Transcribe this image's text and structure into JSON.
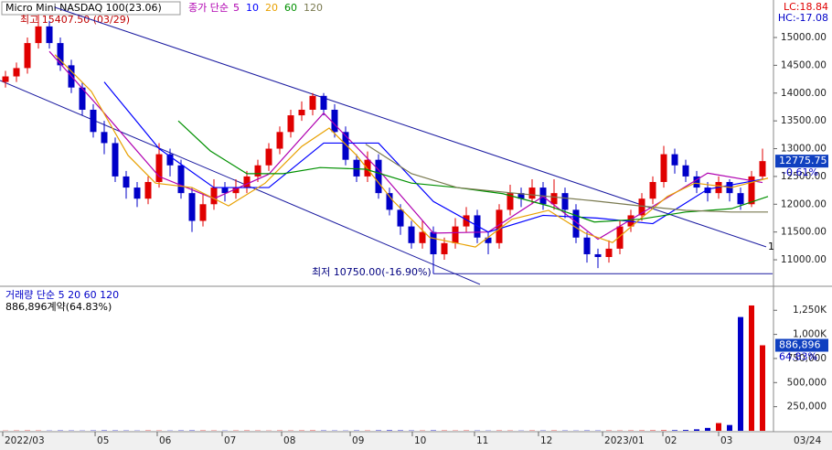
{
  "chart_data": {
    "type": "candlestick",
    "title": "Micro Mini NASDAQ 100(23.06)",
    "legend_prefix": "종가 단순",
    "high_label": "최고 15407.50 (03/29)",
    "low_label": "최저 10750.00(-16.90%)",
    "lc_label": "LC:18.84",
    "hc_label": "HC:-17.08",
    "last_price_label": "12775.75",
    "change_label": "-0.61%",
    "line_label": "1",
    "last_date": "03/24",
    "up_color": "#e00000",
    "down_color": "#0000c8",
    "ylim": [
      10540,
      15675
    ],
    "yticks": [
      {
        "value": 11000,
        "label": "11000.00"
      },
      {
        "value": 11500,
        "label": "11500.00"
      },
      {
        "value": 12000,
        "label": "12000.00"
      },
      {
        "value": 12500,
        "label": "12500.00"
      },
      {
        "value": 13000,
        "label": "13000.00"
      },
      {
        "value": 13500,
        "label": "13500.00"
      },
      {
        "value": 14000,
        "label": "14000.00"
      },
      {
        "value": 14500,
        "label": "14500.00"
      },
      {
        "value": 15000,
        "label": "15000.00"
      }
    ],
    "xticks": [
      {
        "value": -0.25,
        "label": "2022/03"
      },
      {
        "value": 8.17,
        "label": "05"
      },
      {
        "value": 13.83,
        "label": "06"
      },
      {
        "value": 19.75,
        "label": "07"
      },
      {
        "value": 25.17,
        "label": "08"
      },
      {
        "value": 31.42,
        "label": "09"
      },
      {
        "value": 37.08,
        "label": "10"
      },
      {
        "value": 42.75,
        "label": "11"
      },
      {
        "value": 48.58,
        "label": "12"
      },
      {
        "value": 54.42,
        "label": "2023/01"
      },
      {
        "value": 59.92,
        "label": "02"
      },
      {
        "value": 65,
        "label": "03"
      }
    ],
    "candles": {
      "open": [
        14200,
        14300,
        14450,
        14900,
        15200,
        14900,
        14500,
        14100,
        13700,
        13300,
        13100,
        12500,
        12300,
        12100,
        12400,
        12900,
        12700,
        12200,
        11700,
        12000,
        12300,
        12200,
        12300,
        12500,
        12700,
        13000,
        13300,
        13600,
        13700,
        13950,
        13700,
        13300,
        12800,
        12500,
        12800,
        12200,
        11900,
        11600,
        11300,
        11500,
        11100,
        11300,
        11600,
        11800,
        11400,
        11300,
        11900,
        12200,
        12100,
        12300,
        12000,
        12200,
        11900,
        11400,
        11100,
        11050,
        11200,
        11600,
        11800,
        12100,
        12400,
        12900,
        12700,
        12500,
        12300,
        12200,
        12400,
        12200,
        12000,
        12500
      ],
      "high": [
        14400,
        14550,
        15000,
        15407.5,
        15300,
        15000,
        14600,
        14200,
        13800,
        13500,
        13200,
        12600,
        12400,
        12500,
        13100,
        13000,
        12800,
        12300,
        12200,
        12450,
        12400,
        12450,
        12600,
        12800,
        13100,
        13400,
        13700,
        13850,
        14000,
        14000,
        13800,
        13400,
        12900,
        12950,
        12900,
        12300,
        12000,
        11700,
        11700,
        11600,
        11400,
        11750,
        11950,
        11900,
        11500,
        12000,
        12350,
        12300,
        12450,
        12400,
        12450,
        12300,
        12000,
        11500,
        11200,
        11350,
        11700,
        11900,
        12200,
        12500,
        13050,
        13000,
        12800,
        12600,
        12400,
        12500,
        12450,
        12300,
        12600,
        13000
      ],
      "low": [
        14100,
        14200,
        14350,
        14800,
        14800,
        14400,
        14000,
        13600,
        13200,
        12900,
        12400,
        12100,
        11950,
        12000,
        12300,
        12500,
        12100,
        11500,
        11600,
        11900,
        12050,
        12100,
        12200,
        12400,
        12600,
        12900,
        13200,
        13500,
        13600,
        13600,
        13200,
        12700,
        12400,
        12400,
        12100,
        11800,
        11450,
        11200,
        11200,
        10750,
        11000,
        11200,
        11500,
        11300,
        11100,
        11200,
        11800,
        11950,
        12000,
        11900,
        11900,
        11750,
        11300,
        10950,
        10850,
        10950,
        11100,
        11500,
        11700,
        12000,
        12300,
        12550,
        12400,
        12200,
        12050,
        12100,
        12050,
        11900,
        11950,
        12450
      ],
      "close": [
        14300,
        14450,
        14900,
        15200,
        14900,
        14500,
        14100,
        13700,
        13300,
        13100,
        12500,
        12300,
        12100,
        12400,
        12900,
        12700,
        12200,
        11700,
        12000,
        12300,
        12200,
        12300,
        12500,
        12700,
        13000,
        13300,
        13600,
        13700,
        13950,
        13700,
        13300,
        12800,
        12500,
        12800,
        12200,
        11900,
        11600,
        11300,
        11500,
        11100,
        11300,
        11600,
        11800,
        11400,
        11300,
        11900,
        12200,
        12100,
        12300,
        12000,
        12200,
        11900,
        11400,
        11100,
        11050,
        11200,
        11600,
        11800,
        12100,
        12400,
        12900,
        12700,
        12500,
        12300,
        12200,
        12400,
        12200,
        12000,
        12500,
        12775.75
      ]
    },
    "series": [
      {
        "name": "5",
        "color": "#b000b0",
        "x": [
          4,
          9,
          14,
          19,
          24,
          29,
          34,
          39,
          44,
          49,
          54,
          59,
          64,
          69
        ],
        "values": [
          14750,
          13640,
          12500,
          12100,
          12540,
          13640,
          12620,
          11480,
          11500,
          12140,
          11370,
          11960,
          12560,
          12390
        ]
      },
      {
        "name": "10",
        "color": "#0000ff",
        "x": [
          9,
          14,
          19,
          24,
          29,
          34,
          39,
          44,
          49,
          54,
          59,
          64,
          69
        ],
        "values": [
          14200,
          13000,
          12300,
          12300,
          13100,
          13100,
          12050,
          11500,
          11800,
          11750,
          11650,
          12270,
          12450
        ]
      },
      {
        "name": "20",
        "color": "#e8a000",
        "x": [
          4.5,
          7.83,
          11.17,
          13.67,
          17,
          20.33,
          23.67,
          27,
          29.5,
          32,
          35.33,
          38.67,
          42.83,
          46.17,
          49.5,
          52.83,
          55.33,
          57.83,
          60.33,
          62.83,
          66.17,
          69.5
        ],
        "values": [
          14690,
          14030,
          12880,
          12380,
          12300,
          11970,
          12380,
          13040,
          13370,
          12880,
          12060,
          11400,
          11230,
          11730,
          11890,
          11480,
          11310,
          11730,
          12140,
          12380,
          12300,
          12470
        ]
      },
      {
        "name": "60",
        "color": "#009000",
        "x": [
          15.75,
          18.67,
          22,
          25.33,
          28.67,
          32.83,
          37,
          41.17,
          45.33,
          49.5,
          53.67,
          57.83,
          62,
          66.17,
          69.5
        ],
        "values": [
          13500,
          12960,
          12550,
          12550,
          12660,
          12630,
          12380,
          12300,
          12190,
          11970,
          11680,
          11730,
          11860,
          11920,
          12140
        ]
      },
      {
        "name": "120",
        "color": "#7a7a50",
        "x": [
          32.83,
          37,
          41.17,
          45.33,
          49.5,
          53.67,
          57.83,
          62,
          66.17,
          69.5
        ],
        "values": [
          13080,
          12550,
          12300,
          12220,
          12140,
          12060,
          11970,
          11890,
          11860,
          11860
        ]
      }
    ],
    "trendlines": [
      {
        "color": "#1a1aa0",
        "x": [
          -0.5,
          43.25
        ],
        "values": [
          14227,
          10558
        ]
      },
      {
        "color": "#1a1aa0",
        "x": [
          4.5,
          69.33
        ],
        "values": [
          15543,
          11233
        ]
      },
      {
        "color": "#1a1aa0",
        "x": [
          39,
          69.92
        ],
        "values": [
          10750,
          10750
        ]
      }
    ],
    "volume": {
      "title": "거래량 단순 5 20 60 120",
      "summary_label": "886,896계약(64.83%)",
      "last_label": "886,896",
      "ratio_label": "64.83%",
      "ylim": [
        0,
        1480000
      ],
      "yticks": [
        {
          "value": 250000,
          "label": "250,000"
        },
        {
          "value": 500000,
          "label": "500,000"
        },
        {
          "value": 750000,
          "label": "750,000"
        },
        {
          "value": 1000000,
          "label": "1,000K"
        },
        {
          "value": 1250000,
          "label": "1,250K"
        }
      ],
      "values": [
        2000,
        2500,
        3000,
        2500,
        2000,
        3000,
        2500,
        2000,
        3000,
        3500,
        3000,
        2500,
        2000,
        3000,
        2500,
        2000,
        3000,
        3500,
        3000,
        2500,
        2000,
        2500,
        3000,
        2500,
        2000,
        3000,
        2500,
        3000,
        3500,
        3000,
        2500,
        2000,
        3000,
        2500,
        4000,
        5000,
        4000,
        3000,
        2500,
        4000,
        3000,
        2500,
        3000,
        2500,
        2000,
        3000,
        2500,
        2000,
        3000,
        2500,
        3000,
        2500,
        2000,
        3000,
        2500,
        3000,
        2500,
        3000,
        3500,
        4000,
        5000,
        6000,
        8000,
        15000,
        30000,
        80000,
        60000,
        1180000,
        1300000,
        886896
      ]
    }
  }
}
